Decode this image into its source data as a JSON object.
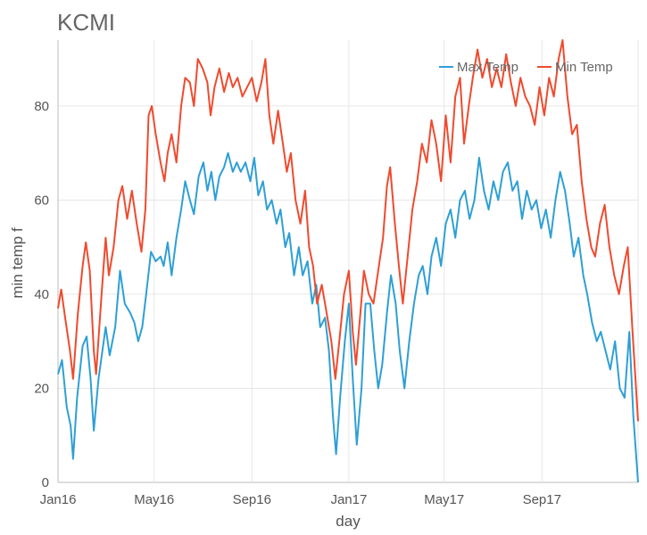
{
  "chart_data": {
    "type": "line",
    "title": "KCMI",
    "xlabel": "day",
    "ylabel": "min temp f",
    "x_range": [
      "2016-01-01",
      "2017-12-31"
    ],
    "ylim": [
      0,
      94
    ],
    "y_ticks": [
      0,
      20,
      40,
      60,
      80
    ],
    "x_ticks": [
      {
        "label": "Jan16",
        "date": "2016-01-01"
      },
      {
        "label": "May16",
        "date": "2016-05-01"
      },
      {
        "label": "Sep16",
        "date": "2016-09-01"
      },
      {
        "label": "Jan17",
        "date": "2017-01-01"
      },
      {
        "label": "May17",
        "date": "2017-05-01"
      },
      {
        "label": "Sep17",
        "date": "2017-09-01"
      }
    ],
    "grid": true,
    "legend_position": "top-right",
    "series": [
      {
        "name": "Max Temp",
        "color": "#2e9fd6",
        "points": [
          [
            "2016-01-01",
            23
          ],
          [
            "2016-01-06",
            26
          ],
          [
            "2016-01-12",
            16
          ],
          [
            "2016-01-17",
            12
          ],
          [
            "2016-01-20",
            5
          ],
          [
            "2016-01-25",
            18
          ],
          [
            "2016-02-01",
            29
          ],
          [
            "2016-02-06",
            31
          ],
          [
            "2016-02-11",
            22
          ],
          [
            "2016-02-15",
            11
          ],
          [
            "2016-02-21",
            22
          ],
          [
            "2016-03-01",
            33
          ],
          [
            "2016-03-06",
            27
          ],
          [
            "2016-03-13",
            33
          ],
          [
            "2016-03-19",
            45
          ],
          [
            "2016-03-25",
            38
          ],
          [
            "2016-04-01",
            36
          ],
          [
            "2016-04-06",
            34
          ],
          [
            "2016-04-11",
            30
          ],
          [
            "2016-04-16",
            33
          ],
          [
            "2016-04-21",
            40
          ],
          [
            "2016-04-27",
            49
          ],
          [
            "2016-05-03",
            47
          ],
          [
            "2016-05-09",
            48
          ],
          [
            "2016-05-13",
            46
          ],
          [
            "2016-05-18",
            51
          ],
          [
            "2016-05-23",
            44
          ],
          [
            "2016-05-29",
            52
          ],
          [
            "2016-06-04",
            58
          ],
          [
            "2016-06-09",
            64
          ],
          [
            "2016-06-15",
            60
          ],
          [
            "2016-06-20",
            57
          ],
          [
            "2016-06-26",
            65
          ],
          [
            "2016-07-02",
            68
          ],
          [
            "2016-07-07",
            62
          ],
          [
            "2016-07-12",
            66
          ],
          [
            "2016-07-17",
            60
          ],
          [
            "2016-07-22",
            65
          ],
          [
            "2016-07-28",
            67
          ],
          [
            "2016-08-02",
            70
          ],
          [
            "2016-08-08",
            66
          ],
          [
            "2016-08-13",
            68
          ],
          [
            "2016-08-18",
            66
          ],
          [
            "2016-08-24",
            68
          ],
          [
            "2016-08-30",
            64
          ],
          [
            "2016-09-04",
            69
          ],
          [
            "2016-09-09",
            61
          ],
          [
            "2016-09-15",
            64
          ],
          [
            "2016-09-20",
            58
          ],
          [
            "2016-09-26",
            60
          ],
          [
            "2016-10-02",
            55
          ],
          [
            "2016-10-07",
            58
          ],
          [
            "2016-10-13",
            50
          ],
          [
            "2016-10-18",
            53
          ],
          [
            "2016-10-24",
            44
          ],
          [
            "2016-10-30",
            50
          ],
          [
            "2016-11-04",
            44
          ],
          [
            "2016-11-10",
            47
          ],
          [
            "2016-11-16",
            38
          ],
          [
            "2016-11-21",
            42
          ],
          [
            "2016-11-26",
            33
          ],
          [
            "2016-12-02",
            35
          ],
          [
            "2016-12-07",
            28
          ],
          [
            "2016-12-12",
            14
          ],
          [
            "2016-12-16",
            6
          ],
          [
            "2016-12-21",
            18
          ],
          [
            "2016-12-27",
            30
          ],
          [
            "2017-01-01",
            38
          ],
          [
            "2017-01-06",
            22
          ],
          [
            "2017-01-11",
            8
          ],
          [
            "2017-01-17",
            20
          ],
          [
            "2017-01-22",
            38
          ],
          [
            "2017-01-28",
            38
          ],
          [
            "2017-02-02",
            28
          ],
          [
            "2017-02-07",
            20
          ],
          [
            "2017-02-12",
            25
          ],
          [
            "2017-02-18",
            36
          ],
          [
            "2017-02-23",
            44
          ],
          [
            "2017-03-01",
            38
          ],
          [
            "2017-03-06",
            28
          ],
          [
            "2017-03-12",
            20
          ],
          [
            "2017-03-18",
            30
          ],
          [
            "2017-03-24",
            38
          ],
          [
            "2017-03-30",
            44
          ],
          [
            "2017-04-04",
            46
          ],
          [
            "2017-04-10",
            40
          ],
          [
            "2017-04-15",
            48
          ],
          [
            "2017-04-21",
            52
          ],
          [
            "2017-04-27",
            46
          ],
          [
            "2017-05-03",
            55
          ],
          [
            "2017-05-09",
            58
          ],
          [
            "2017-05-15",
            52
          ],
          [
            "2017-05-21",
            60
          ],
          [
            "2017-05-27",
            62
          ],
          [
            "2017-06-02",
            56
          ],
          [
            "2017-06-08",
            60
          ],
          [
            "2017-06-14",
            69
          ],
          [
            "2017-06-20",
            62
          ],
          [
            "2017-06-26",
            58
          ],
          [
            "2017-07-02",
            64
          ],
          [
            "2017-07-08",
            60
          ],
          [
            "2017-07-14",
            66
          ],
          [
            "2017-07-20",
            68
          ],
          [
            "2017-07-26",
            62
          ],
          [
            "2017-08-01",
            64
          ],
          [
            "2017-08-07",
            56
          ],
          [
            "2017-08-13",
            62
          ],
          [
            "2017-08-19",
            58
          ],
          [
            "2017-08-25",
            60
          ],
          [
            "2017-08-31",
            54
          ],
          [
            "2017-09-06",
            58
          ],
          [
            "2017-09-12",
            52
          ],
          [
            "2017-09-18",
            60
          ],
          [
            "2017-09-24",
            66
          ],
          [
            "2017-09-30",
            62
          ],
          [
            "2017-10-06",
            55
          ],
          [
            "2017-10-11",
            48
          ],
          [
            "2017-10-17",
            52
          ],
          [
            "2017-10-23",
            44
          ],
          [
            "2017-10-28",
            40
          ],
          [
            "2017-11-03",
            34
          ],
          [
            "2017-11-09",
            30
          ],
          [
            "2017-11-14",
            32
          ],
          [
            "2017-11-20",
            28
          ],
          [
            "2017-11-26",
            24
          ],
          [
            "2017-12-02",
            30
          ],
          [
            "2017-12-08",
            20
          ],
          [
            "2017-12-14",
            18
          ],
          [
            "2017-12-20",
            32
          ],
          [
            "2017-12-25",
            14
          ],
          [
            "2017-12-31",
            0
          ]
        ]
      },
      {
        "name": "Min Temp",
        "color": "#f04a2e",
        "points": [
          [
            "2016-01-01",
            37
          ],
          [
            "2016-01-05",
            41
          ],
          [
            "2016-01-10",
            35
          ],
          [
            "2016-01-16",
            28
          ],
          [
            "2016-01-20",
            22
          ],
          [
            "2016-01-26",
            36
          ],
          [
            "2016-02-01",
            46
          ],
          [
            "2016-02-05",
            51
          ],
          [
            "2016-02-10",
            45
          ],
          [
            "2016-02-15",
            28
          ],
          [
            "2016-02-18",
            23
          ],
          [
            "2016-02-24",
            38
          ],
          [
            "2016-03-01",
            52
          ],
          [
            "2016-03-05",
            44
          ],
          [
            "2016-03-11",
            50
          ],
          [
            "2016-03-17",
            60
          ],
          [
            "2016-03-22",
            63
          ],
          [
            "2016-03-28",
            56
          ],
          [
            "2016-04-03",
            62
          ],
          [
            "2016-04-09",
            55
          ],
          [
            "2016-04-15",
            49
          ],
          [
            "2016-04-20",
            58
          ],
          [
            "2016-04-24",
            78
          ],
          [
            "2016-04-28",
            80
          ],
          [
            "2016-05-03",
            74
          ],
          [
            "2016-05-09",
            68
          ],
          [
            "2016-05-14",
            64
          ],
          [
            "2016-05-18",
            70
          ],
          [
            "2016-05-23",
            74
          ],
          [
            "2016-05-29",
            68
          ],
          [
            "2016-06-04",
            80
          ],
          [
            "2016-06-09",
            86
          ],
          [
            "2016-06-15",
            85
          ],
          [
            "2016-06-20",
            80
          ],
          [
            "2016-06-25",
            90
          ],
          [
            "2016-07-01",
            88
          ],
          [
            "2016-07-07",
            85
          ],
          [
            "2016-07-11",
            78
          ],
          [
            "2016-07-16",
            84
          ],
          [
            "2016-07-22",
            88
          ],
          [
            "2016-07-28",
            83
          ],
          [
            "2016-08-03",
            87
          ],
          [
            "2016-08-08",
            84
          ],
          [
            "2016-08-14",
            86
          ],
          [
            "2016-08-20",
            82
          ],
          [
            "2016-08-26",
            84
          ],
          [
            "2016-09-01",
            86
          ],
          [
            "2016-09-07",
            81
          ],
          [
            "2016-09-13",
            85
          ],
          [
            "2016-09-18",
            90
          ],
          [
            "2016-09-23",
            78
          ],
          [
            "2016-09-28",
            72
          ],
          [
            "2016-10-04",
            79
          ],
          [
            "2016-10-10",
            72
          ],
          [
            "2016-10-15",
            66
          ],
          [
            "2016-10-20",
            70
          ],
          [
            "2016-10-26",
            60
          ],
          [
            "2016-11-01",
            55
          ],
          [
            "2016-11-07",
            62
          ],
          [
            "2016-11-12",
            50
          ],
          [
            "2016-11-17",
            46
          ],
          [
            "2016-11-22",
            38
          ],
          [
            "2016-11-28",
            42
          ],
          [
            "2016-12-04",
            36
          ],
          [
            "2016-12-10",
            30
          ],
          [
            "2016-12-15",
            22
          ],
          [
            "2016-12-20",
            30
          ],
          [
            "2016-12-26",
            40
          ],
          [
            "2017-01-01",
            45
          ],
          [
            "2017-01-06",
            32
          ],
          [
            "2017-01-10",
            25
          ],
          [
            "2017-01-15",
            35
          ],
          [
            "2017-01-20",
            45
          ],
          [
            "2017-01-26",
            40
          ],
          [
            "2017-02-01",
            38
          ],
          [
            "2017-02-07",
            45
          ],
          [
            "2017-02-13",
            52
          ],
          [
            "2017-02-18",
            63
          ],
          [
            "2017-02-22",
            67
          ],
          [
            "2017-02-28",
            55
          ],
          [
            "2017-03-05",
            46
          ],
          [
            "2017-03-10",
            38
          ],
          [
            "2017-03-16",
            48
          ],
          [
            "2017-03-22",
            58
          ],
          [
            "2017-03-28",
            64
          ],
          [
            "2017-04-03",
            72
          ],
          [
            "2017-04-09",
            68
          ],
          [
            "2017-04-15",
            77
          ],
          [
            "2017-04-21",
            72
          ],
          [
            "2017-04-27",
            64
          ],
          [
            "2017-05-03",
            78
          ],
          [
            "2017-05-09",
            68
          ],
          [
            "2017-05-15",
            82
          ],
          [
            "2017-05-21",
            86
          ],
          [
            "2017-05-26",
            72
          ],
          [
            "2017-06-01",
            80
          ],
          [
            "2017-06-06",
            86
          ],
          [
            "2017-06-12",
            92
          ],
          [
            "2017-06-18",
            86
          ],
          [
            "2017-06-24",
            90
          ],
          [
            "2017-06-30",
            84
          ],
          [
            "2017-07-06",
            88
          ],
          [
            "2017-07-12",
            84
          ],
          [
            "2017-07-18",
            91
          ],
          [
            "2017-07-24",
            85
          ],
          [
            "2017-07-30",
            80
          ],
          [
            "2017-08-05",
            86
          ],
          [
            "2017-08-11",
            82
          ],
          [
            "2017-08-17",
            80
          ],
          [
            "2017-08-23",
            76
          ],
          [
            "2017-08-29",
            84
          ],
          [
            "2017-09-04",
            78
          ],
          [
            "2017-09-10",
            86
          ],
          [
            "2017-09-16",
            82
          ],
          [
            "2017-09-22",
            90
          ],
          [
            "2017-09-27",
            94
          ],
          [
            "2017-10-03",
            82
          ],
          [
            "2017-10-09",
            74
          ],
          [
            "2017-10-15",
            76
          ],
          [
            "2017-10-21",
            64
          ],
          [
            "2017-10-27",
            56
          ],
          [
            "2017-11-02",
            50
          ],
          [
            "2017-11-07",
            48
          ],
          [
            "2017-11-13",
            55
          ],
          [
            "2017-11-19",
            59
          ],
          [
            "2017-11-25",
            50
          ],
          [
            "2017-12-01",
            44
          ],
          [
            "2017-12-07",
            40
          ],
          [
            "2017-12-13",
            46
          ],
          [
            "2017-12-18",
            50
          ],
          [
            "2017-12-24",
            32
          ],
          [
            "2017-12-31",
            13
          ]
        ]
      }
    ]
  }
}
